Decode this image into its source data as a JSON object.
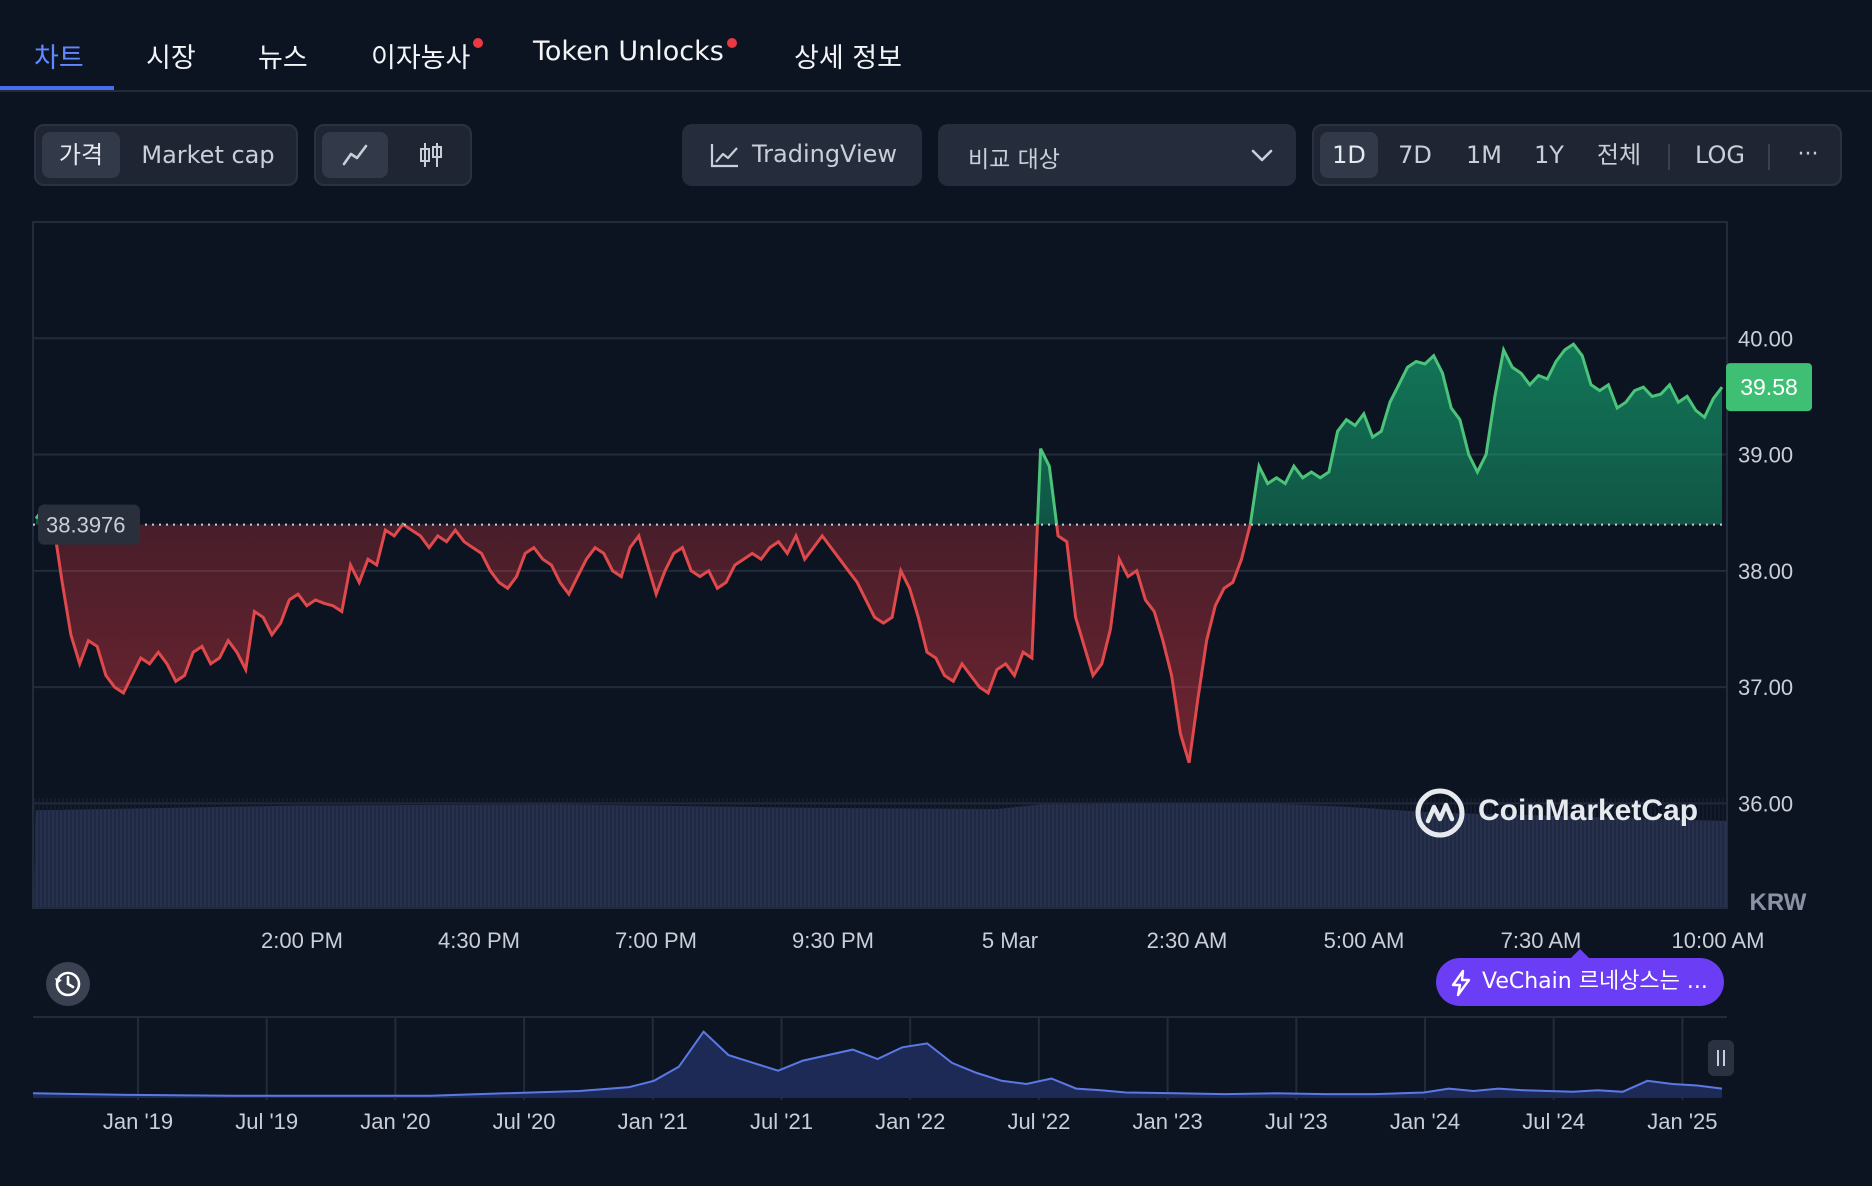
{
  "tabs": [
    {
      "label": "차트",
      "active": true,
      "dot": false
    },
    {
      "label": "시장",
      "active": false,
      "dot": false
    },
    {
      "label": "뉴스",
      "active": false,
      "dot": false
    },
    {
      "label": "이자농사",
      "active": false,
      "dot": true
    },
    {
      "label": "Token Unlocks",
      "active": false,
      "dot": true
    },
    {
      "label": "상세 정보",
      "active": false,
      "dot": false
    }
  ],
  "toolbar": {
    "metric_price": "가격",
    "metric_marketcap": "Market cap",
    "line_chart_icon": "line-chart-icon",
    "candle_chart_icon": "candlestick-icon",
    "tradingview_label": "TradingView",
    "compare_placeholder": "비교 대상",
    "ranges": [
      "1D",
      "7D",
      "1M",
      "1Y",
      "전체"
    ],
    "active_range": "1D",
    "log_label": "LOG",
    "more_label": "···"
  },
  "colors": {
    "background": "#0d1421",
    "up": "#16c784",
    "up_line": "#4bc47a",
    "down": "#ea3943",
    "down_line": "#e0494b",
    "accent": "#6188ff",
    "volume": "#2a3352",
    "navigator": "#5b79e6",
    "news_pill": "#6b3ef5"
  },
  "brand": {
    "name": "CoinMarketCap",
    "icon": "coinmarketcap-logo-icon"
  },
  "news": {
    "label": "VeChain 르네상스는 ...",
    "icon": "lightning-icon"
  },
  "history_icon": "history-icon",
  "navigator_handle_icon": "pause-handle-icon",
  "chart_data": {
    "type": "area",
    "currency": "KRW",
    "baseline": 38.3976,
    "baseline_label": "38.3976",
    "last_price": 39.58,
    "last_price_label": "39.58",
    "ylim": [
      35.1,
      41.0
    ],
    "yticks": [
      40.0,
      39.0,
      38.0,
      37.0,
      36.0
    ],
    "ytick_labels": [
      "40.00",
      "39.00",
      "38.00",
      "37.00",
      "36.00"
    ],
    "xtick_labels": [
      "2:00 PM",
      "4:30 PM",
      "7:00 PM",
      "9:30 PM",
      "5 Mar",
      "2:30 AM",
      "5:00 AM",
      "7:30 AM",
      "10:00 AM"
    ],
    "grid": true,
    "price_points": [
      [
        0,
        38.45
      ],
      [
        1,
        38.55
      ],
      [
        2,
        38.4
      ],
      [
        3,
        37.9
      ],
      [
        4,
        37.45
      ],
      [
        5,
        37.2
      ],
      [
        6,
        37.4
      ],
      [
        7,
        37.35
      ],
      [
        8,
        37.1
      ],
      [
        9,
        37.0
      ],
      [
        10,
        36.95
      ],
      [
        11,
        37.1
      ],
      [
        12,
        37.25
      ],
      [
        13,
        37.2
      ],
      [
        14,
        37.3
      ],
      [
        15,
        37.2
      ],
      [
        16,
        37.05
      ],
      [
        17,
        37.1
      ],
      [
        18,
        37.3
      ],
      [
        19,
        37.35
      ],
      [
        20,
        37.2
      ],
      [
        21,
        37.25
      ],
      [
        22,
        37.4
      ],
      [
        23,
        37.3
      ],
      [
        24,
        37.15
      ],
      [
        25,
        37.65
      ],
      [
        26,
        37.6
      ],
      [
        27,
        37.45
      ],
      [
        28,
        37.55
      ],
      [
        29,
        37.75
      ],
      [
        30,
        37.8
      ],
      [
        31,
        37.7
      ],
      [
        32,
        37.75
      ],
      [
        33,
        37.72
      ],
      [
        34,
        37.7
      ],
      [
        35,
        37.65
      ],
      [
        36,
        38.05
      ],
      [
        37,
        37.9
      ],
      [
        38,
        38.1
      ],
      [
        39,
        38.05
      ],
      [
        40,
        38.35
      ],
      [
        41,
        38.3
      ],
      [
        42,
        38.4
      ],
      [
        43,
        38.35
      ],
      [
        44,
        38.3
      ],
      [
        45,
        38.2
      ],
      [
        46,
        38.3
      ],
      [
        47,
        38.25
      ],
      [
        48,
        38.35
      ],
      [
        49,
        38.25
      ],
      [
        50,
        38.2
      ],
      [
        51,
        38.15
      ],
      [
        52,
        38.0
      ],
      [
        53,
        37.9
      ],
      [
        54,
        37.85
      ],
      [
        55,
        37.95
      ],
      [
        56,
        38.15
      ],
      [
        57,
        38.2
      ],
      [
        58,
        38.1
      ],
      [
        59,
        38.05
      ],
      [
        60,
        37.9
      ],
      [
        61,
        37.8
      ],
      [
        62,
        37.95
      ],
      [
        63,
        38.1
      ],
      [
        64,
        38.2
      ],
      [
        65,
        38.15
      ],
      [
        66,
        38.0
      ],
      [
        67,
        37.95
      ],
      [
        68,
        38.2
      ],
      [
        69,
        38.3
      ],
      [
        70,
        38.05
      ],
      [
        71,
        37.8
      ],
      [
        72,
        38.0
      ],
      [
        73,
        38.15
      ],
      [
        74,
        38.2
      ],
      [
        75,
        38.0
      ],
      [
        76,
        37.95
      ],
      [
        77,
        38.0
      ],
      [
        78,
        37.85
      ],
      [
        79,
        37.9
      ],
      [
        80,
        38.05
      ],
      [
        81,
        38.1
      ],
      [
        82,
        38.15
      ],
      [
        83,
        38.1
      ],
      [
        84,
        38.2
      ],
      [
        85,
        38.25
      ],
      [
        86,
        38.15
      ],
      [
        87,
        38.3
      ],
      [
        88,
        38.1
      ],
      [
        89,
        38.2
      ],
      [
        90,
        38.3
      ],
      [
        91,
        38.2
      ],
      [
        92,
        38.1
      ],
      [
        93,
        38.0
      ],
      [
        94,
        37.9
      ],
      [
        95,
        37.75
      ],
      [
        96,
        37.6
      ],
      [
        97,
        37.55
      ],
      [
        98,
        37.6
      ],
      [
        99,
        38.0
      ],
      [
        100,
        37.85
      ],
      [
        101,
        37.6
      ],
      [
        102,
        37.3
      ],
      [
        103,
        37.25
      ],
      [
        104,
        37.1
      ],
      [
        105,
        37.05
      ],
      [
        106,
        37.2
      ],
      [
        107,
        37.1
      ],
      [
        108,
        37.0
      ],
      [
        109,
        36.95
      ],
      [
        110,
        37.15
      ],
      [
        111,
        37.2
      ],
      [
        112,
        37.1
      ],
      [
        113,
        37.3
      ],
      [
        114,
        37.25
      ],
      [
        115,
        39.05
      ],
      [
        116,
        38.9
      ],
      [
        117,
        38.3
      ],
      [
        118,
        38.25
      ],
      [
        119,
        37.6
      ],
      [
        120,
        37.35
      ],
      [
        121,
        37.1
      ],
      [
        122,
        37.2
      ],
      [
        123,
        37.5
      ],
      [
        124,
        38.1
      ],
      [
        125,
        37.95
      ],
      [
        126,
        38.0
      ],
      [
        127,
        37.75
      ],
      [
        128,
        37.65
      ],
      [
        129,
        37.4
      ],
      [
        130,
        37.1
      ],
      [
        131,
        36.6
      ],
      [
        132,
        36.35
      ],
      [
        133,
        36.9
      ],
      [
        134,
        37.4
      ],
      [
        135,
        37.7
      ],
      [
        136,
        37.85
      ],
      [
        137,
        37.9
      ],
      [
        138,
        38.1
      ],
      [
        139,
        38.4
      ],
      [
        140,
        38.9
      ],
      [
        141,
        38.75
      ],
      [
        142,
        38.8
      ],
      [
        143,
        38.75
      ],
      [
        144,
        38.9
      ],
      [
        145,
        38.8
      ],
      [
        146,
        38.85
      ],
      [
        147,
        38.8
      ],
      [
        148,
        38.85
      ],
      [
        149,
        39.2
      ],
      [
        150,
        39.3
      ],
      [
        151,
        39.25
      ],
      [
        152,
        39.35
      ],
      [
        153,
        39.15
      ],
      [
        154,
        39.2
      ],
      [
        155,
        39.45
      ],
      [
        156,
        39.6
      ],
      [
        157,
        39.75
      ],
      [
        158,
        39.8
      ],
      [
        159,
        39.78
      ],
      [
        160,
        39.85
      ],
      [
        161,
        39.7
      ],
      [
        162,
        39.4
      ],
      [
        163,
        39.3
      ],
      [
        164,
        39.0
      ],
      [
        165,
        38.85
      ],
      [
        166,
        39.0
      ],
      [
        167,
        39.5
      ],
      [
        168,
        39.9
      ],
      [
        169,
        39.75
      ],
      [
        170,
        39.7
      ],
      [
        171,
        39.6
      ],
      [
        172,
        39.68
      ],
      [
        173,
        39.65
      ],
      [
        174,
        39.8
      ],
      [
        175,
        39.9
      ],
      [
        176,
        39.95
      ],
      [
        177,
        39.85
      ],
      [
        178,
        39.6
      ],
      [
        179,
        39.55
      ],
      [
        180,
        39.6
      ],
      [
        181,
        39.4
      ],
      [
        182,
        39.45
      ],
      [
        183,
        39.55
      ],
      [
        184,
        39.58
      ],
      [
        185,
        39.5
      ],
      [
        186,
        39.52
      ],
      [
        187,
        39.6
      ],
      [
        188,
        39.45
      ],
      [
        189,
        39.5
      ],
      [
        190,
        39.38
      ],
      [
        191,
        39.32
      ],
      [
        192,
        39.48
      ],
      [
        193,
        39.58
      ]
    ],
    "volume_points": [
      [
        0,
        0.82
      ],
      [
        30,
        0.86
      ],
      [
        60,
        0.87
      ],
      [
        90,
        0.84
      ],
      [
        110,
        0.83
      ],
      [
        115,
        0.87
      ],
      [
        140,
        0.88
      ],
      [
        150,
        0.85
      ],
      [
        160,
        0.8
      ],
      [
        170,
        0.78
      ],
      [
        193,
        0.73
      ]
    ],
    "navigator": {
      "type": "area",
      "xtick_labels": [
        "Jan '19",
        "Jul '19",
        "Jan '20",
        "Jul '20",
        "Jan '21",
        "Jul '21",
        "Jan '22",
        "Jul '22",
        "Jan '23",
        "Jul '23",
        "Jan '24",
        "Jul '24",
        "Jan '25"
      ],
      "points": [
        [
          0,
          0.06
        ],
        [
          2,
          0.05
        ],
        [
          4,
          0.04
        ],
        [
          8,
          0.03
        ],
        [
          12,
          0.03
        ],
        [
          16,
          0.03
        ],
        [
          19,
          0.06
        ],
        [
          22,
          0.09
        ],
        [
          24,
          0.14
        ],
        [
          25,
          0.22
        ],
        [
          26,
          0.4
        ],
        [
          27,
          0.85
        ],
        [
          28,
          0.55
        ],
        [
          29,
          0.45
        ],
        [
          30,
          0.35
        ],
        [
          31,
          0.48
        ],
        [
          32,
          0.55
        ],
        [
          33,
          0.62
        ],
        [
          34,
          0.5
        ],
        [
          35,
          0.65
        ],
        [
          36,
          0.7
        ],
        [
          37,
          0.45
        ],
        [
          38,
          0.32
        ],
        [
          39,
          0.22
        ],
        [
          40,
          0.18
        ],
        [
          41,
          0.25
        ],
        [
          42,
          0.12
        ],
        [
          43,
          0.1
        ],
        [
          44,
          0.07
        ],
        [
          46,
          0.06
        ],
        [
          48,
          0.05
        ],
        [
          50,
          0.06
        ],
        [
          52,
          0.05
        ],
        [
          54,
          0.05
        ],
        [
          56,
          0.07
        ],
        [
          57,
          0.12
        ],
        [
          58,
          0.09
        ],
        [
          59,
          0.12
        ],
        [
          60,
          0.1
        ],
        [
          62,
          0.08
        ],
        [
          63,
          0.1
        ],
        [
          64,
          0.08
        ],
        [
          65,
          0.22
        ],
        [
          66,
          0.18
        ],
        [
          67,
          0.16
        ],
        [
          68,
          0.12
        ]
      ]
    }
  }
}
